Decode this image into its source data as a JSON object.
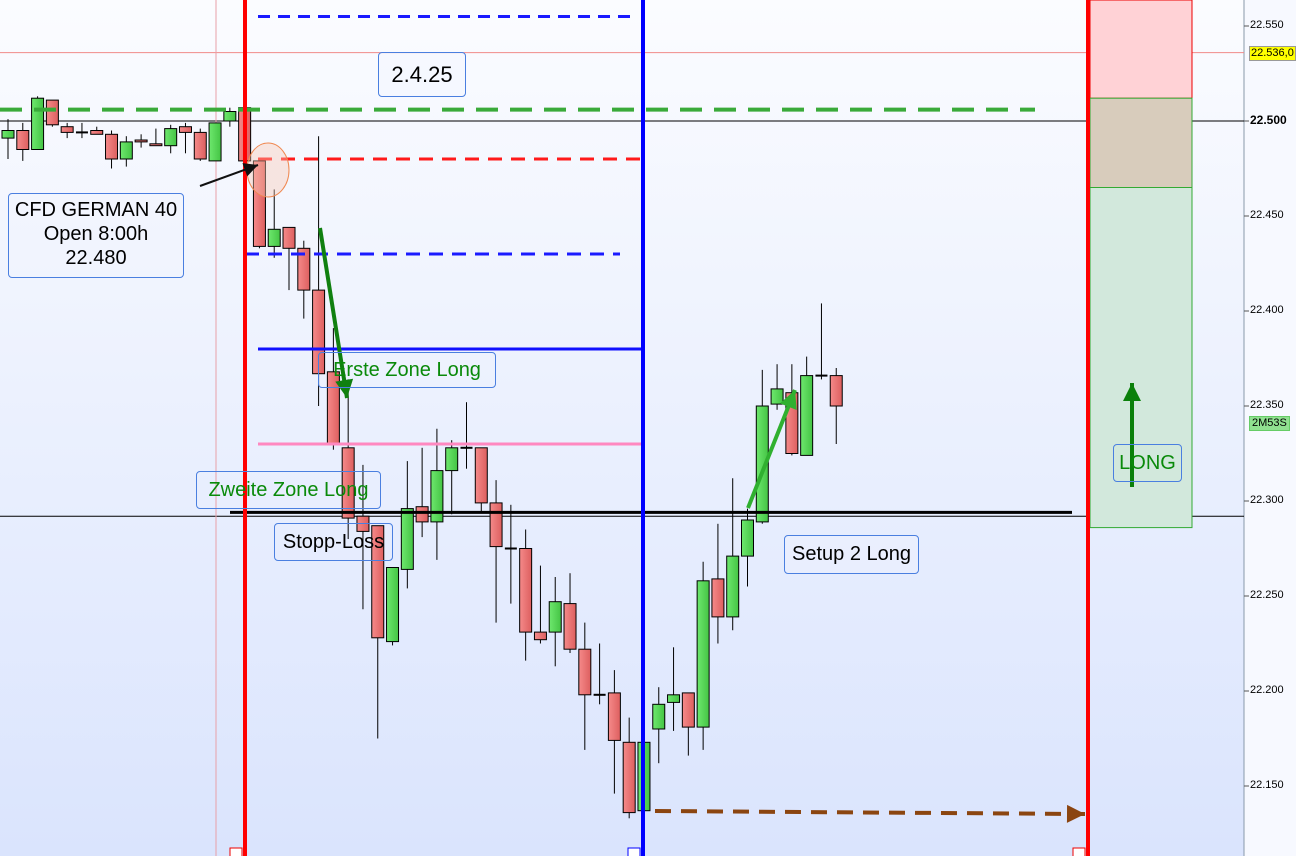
{
  "chart_data": {
    "type": "candlestick",
    "instrument_label": "CFD GERMAN 40",
    "ylim": [
      22124,
      22568
    ],
    "y_ticks": [
      "22.550",
      "22.500",
      "22.450",
      "22.400",
      "22.350",
      "22.300",
      "22.250",
      "22.200",
      "22.150"
    ],
    "y_tick_values": [
      22550,
      22500,
      22450,
      22400,
      22350,
      22300,
      22250,
      22200,
      22150
    ],
    "current_price_label": "22.536,0",
    "current_price": 22536,
    "timer_label": "2M53S",
    "candles_ohlc": [
      [
        22491,
        22501,
        22480,
        22495
      ],
      [
        22495,
        22499,
        22479,
        22485
      ],
      [
        22485,
        22513,
        22485,
        22512
      ],
      [
        22511,
        22511,
        22497,
        22498
      ],
      [
        22497,
        22499,
        22491,
        22494
      ],
      [
        22494,
        22499,
        22491,
        22494
      ],
      [
        22495,
        22497,
        22493,
        22493
      ],
      [
        22493,
        22495,
        22475,
        22480
      ],
      [
        22480,
        22492,
        22476,
        22489
      ],
      [
        22490,
        22493,
        22486,
        22489
      ],
      [
        22488,
        22496,
        22487,
        22487
      ],
      [
        22487,
        22498,
        22483,
        22496
      ],
      [
        22497,
        22499,
        22483,
        22494
      ],
      [
        22494,
        22496,
        22479,
        22480
      ],
      [
        22479,
        22499,
        22479,
        22499
      ],
      [
        22500,
        22507,
        22497,
        22505
      ],
      [
        22507,
        22507,
        22479,
        22479
      ],
      [
        22479,
        22480,
        22433,
        22434
      ],
      [
        22434,
        22464,
        22428,
        22443
      ],
      [
        22444,
        22444,
        22411,
        22433
      ],
      [
        22433,
        22437,
        22396,
        22411
      ],
      [
        22411,
        22492,
        22350,
        22367
      ],
      [
        22368,
        22391,
        22327,
        22330
      ],
      [
        22328,
        22364,
        22280,
        22291
      ],
      [
        22292,
        22319,
        22243,
        22284
      ],
      [
        22287,
        22287,
        22175,
        22228
      ],
      [
        22226,
        22265,
        22224,
        22265
      ],
      [
        22264,
        22321,
        22254,
        22296
      ],
      [
        22297,
        22328,
        22281,
        22289
      ],
      [
        22289,
        22338,
        22269,
        22316
      ],
      [
        22316,
        22332,
        22293,
        22328
      ],
      [
        22328,
        22352,
        22317,
        22328
      ],
      [
        22328,
        22328,
        22294,
        22299
      ],
      [
        22299,
        22311,
        22236,
        22276
      ],
      [
        22275,
        22298,
        22246,
        22275
      ],
      [
        22275,
        22285,
        22216,
        22231
      ],
      [
        22231,
        22266,
        22225,
        22227
      ],
      [
        22231,
        22260,
        22213,
        22247
      ],
      [
        22246,
        22262,
        22220,
        22222
      ],
      [
        22222,
        22236,
        22169,
        22198
      ],
      [
        22198,
        22225,
        22193,
        22198
      ],
      [
        22199,
        22211,
        22146,
        22174
      ],
      [
        22173,
        22186,
        22133,
        22136
      ],
      [
        22137,
        22174,
        22136,
        22173
      ],
      [
        22180,
        22202,
        22162,
        22193
      ],
      [
        22194,
        22223,
        22179,
        22198
      ],
      [
        22199,
        22199,
        22166,
        22181
      ],
      [
        22181,
        22268,
        22169,
        22258
      ],
      [
        22259,
        22288,
        22225,
        22239
      ],
      [
        22239,
        22312,
        22232,
        22271
      ],
      [
        22271,
        22296,
        22255,
        22290
      ],
      [
        22289,
        22369,
        22288,
        22350
      ],
      [
        22351,
        22372,
        22348,
        22359
      ],
      [
        22357,
        22372,
        22324,
        22325
      ],
      [
        22324,
        22376,
        22324,
        22366
      ],
      [
        22366,
        22404,
        22364,
        22366
      ],
      [
        22366,
        22370,
        22330,
        22350
      ]
    ],
    "levels": {
      "blue_dashed_top": 22555,
      "green_dashed": 22506,
      "red_dashed_open": 22480,
      "blue_dashed_mid": 22430,
      "blue_solid_zone1": 22380,
      "pink_zone2": 22330,
      "black_stop": 22294,
      "long_target_top": 22512,
      "long_entry_zone_bottom": 22465,
      "long_stop": 22286
    },
    "colors": {
      "bull": "#5ad65a",
      "bear": "#ee7575",
      "session_line": "#ff0000",
      "day_line": "#0000ff",
      "accent_green": "#0a7f0a"
    }
  },
  "annotations": {
    "date": "2.4.25",
    "open_box": {
      "line1": "CFD GERMAN 40",
      "line2": "Open 8:00h",
      "line3": "22.480"
    },
    "zone1": "Erste  Zone Long",
    "zone2": "Zweite  Zone Long",
    "stop": "Stopp-Loss",
    "setup": "Setup 2 Long",
    "long": "LONG"
  }
}
